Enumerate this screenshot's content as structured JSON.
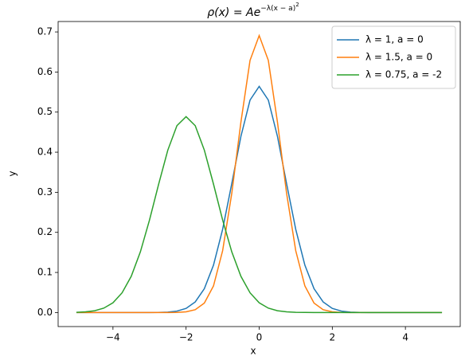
{
  "chart_data": {
    "type": "line",
    "title": {
      "base": "ρ(x) = Ae",
      "exponent": "−λ(x − a)",
      "power": "2"
    },
    "x_label": "x",
    "y_label": "y",
    "x": [
      -5,
      -4.75,
      -4.5,
      -4.25,
      -4,
      -3.75,
      -3.5,
      -3.25,
      -3,
      -2.75,
      -2.5,
      -2.25,
      -2,
      -1.75,
      -1.5,
      -1.25,
      -1,
      -0.75,
      -0.5,
      -0.25,
      0,
      0.25,
      0.5,
      0.75,
      1,
      1.25,
      1.5,
      1.75,
      2,
      2.25,
      2.5,
      2.75,
      3,
      3.25,
      3.5,
      3.75,
      4,
      4.25,
      4.5,
      4.75,
      5
    ],
    "series": [
      {
        "name": "λ = 1, a = 0",
        "color": "#1f77b4",
        "values": [
          0,
          0,
          0,
          0,
          0,
          0,
          0,
          0,
          0.0001,
          0.0003,
          0.0011,
          0.0036,
          0.0103,
          0.0264,
          0.0595,
          0.1182,
          0.2076,
          0.3215,
          0.4394,
          0.53,
          0.5642,
          0.53,
          0.4394,
          0.3215,
          0.2076,
          0.1182,
          0.0595,
          0.0264,
          0.0103,
          0.0036,
          0.0011,
          0.0003,
          0.0001,
          0,
          0,
          0,
          0,
          0,
          0,
          0,
          0
        ]
      },
      {
        "name": "λ = 1.5, a = 0",
        "color": "#ff7f0e",
        "values": [
          0,
          0,
          0,
          0,
          0,
          0,
          0,
          0,
          0,
          0,
          0.0001,
          0.0003,
          0.0017,
          0.007,
          0.0236,
          0.0663,
          0.1542,
          0.2972,
          0.4749,
          0.6291,
          0.691,
          0.6291,
          0.4749,
          0.2972,
          0.1542,
          0.0663,
          0.0236,
          0.007,
          0.0017,
          0.0003,
          0.0001,
          0,
          0,
          0,
          0,
          0,
          0,
          0,
          0,
          0,
          0
        ]
      },
      {
        "name": "λ = 0.75, a = -2",
        "color": "#2ca02c",
        "values": [
          0.0006,
          0.0017,
          0.0045,
          0.011,
          0.0243,
          0.0492,
          0.0904,
          0.1514,
          0.2308,
          0.3204,
          0.405,
          0.4662,
          0.4886,
          0.4662,
          0.405,
          0.3204,
          0.2308,
          0.1514,
          0.0904,
          0.0492,
          0.0243,
          0.011,
          0.0045,
          0.0017,
          0.0006,
          0.0002,
          0.0001,
          0,
          0,
          0,
          0,
          0,
          0,
          0,
          0,
          0,
          0,
          0,
          0,
          0,
          0
        ]
      }
    ],
    "xlim": [
      -5.5,
      5.5
    ],
    "ylim": [
      -0.035,
      0.726
    ],
    "xticks": [
      {
        "value": -4,
        "label": "−4"
      },
      {
        "value": -2,
        "label": "−2"
      },
      0,
      2,
      4
    ],
    "yticks": [
      {
        "value": 0,
        "label": "0.0"
      },
      0.1,
      0.2,
      0.3,
      0.4,
      0.5,
      0.6,
      0.7
    ],
    "legend": "upper right"
  }
}
